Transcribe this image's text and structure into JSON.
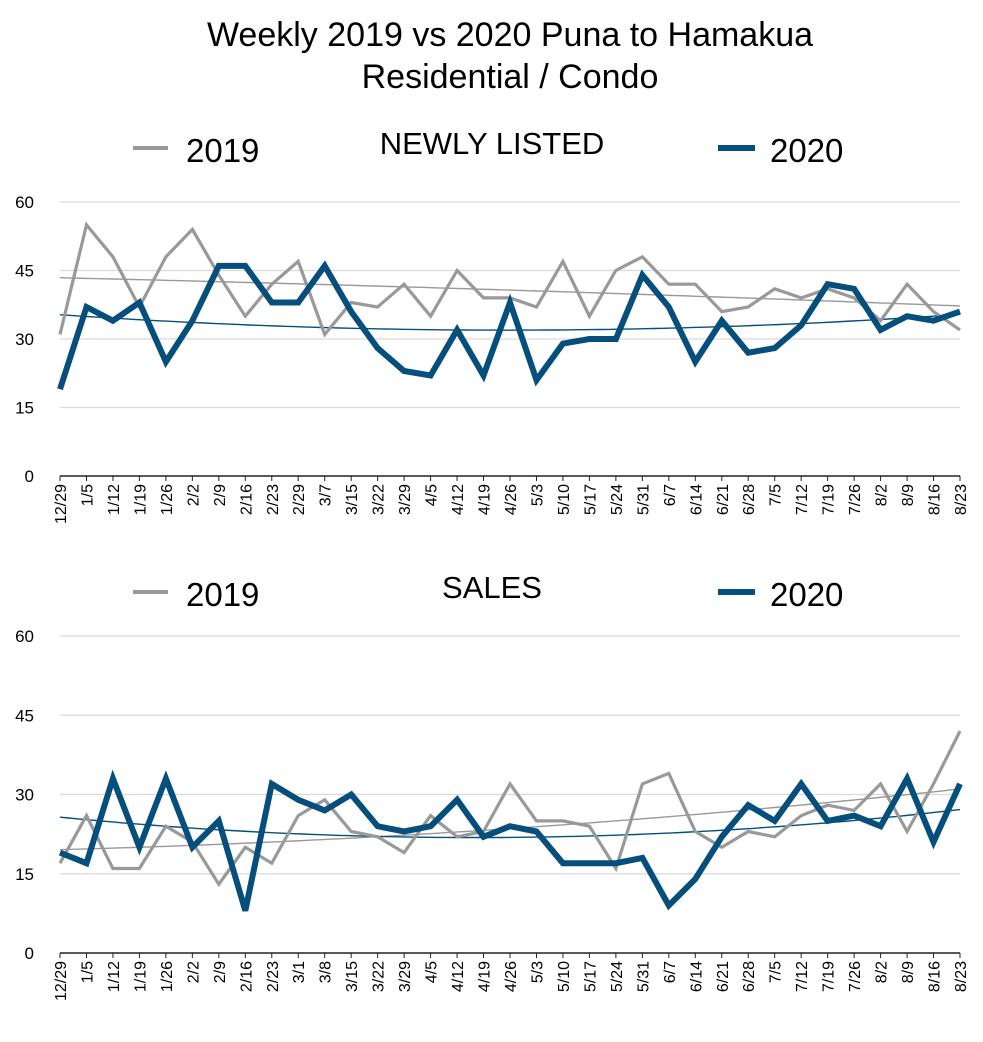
{
  "title_line1": "Weekly 2019 vs 2020 Puna to Hamakua",
  "title_line2": "Residential / Condo",
  "colors": {
    "series_2019": "#999999",
    "series_2020": "#064F7D",
    "grid": "#d9d9d9",
    "axis": "#222222"
  },
  "chart_data": [
    {
      "type": "line",
      "title": "NEWLY LISTED",
      "categories": [
        "12/29",
        "1/5",
        "1/12",
        "1/19",
        "1/26",
        "2/2",
        "2/9",
        "2/16",
        "2/23",
        "2/29",
        "3/7",
        "3/15",
        "3/22",
        "3/29",
        "4/5",
        "4/12",
        "4/19",
        "4/26",
        "5/3",
        "5/10",
        "5/17",
        "5/24",
        "5/31",
        "6/7",
        "6/14",
        "6/21",
        "6/28",
        "7/5",
        "7/12",
        "7/19",
        "7/26",
        "8/2",
        "8/9",
        "8/16",
        "8/23"
      ],
      "yticks": [
        0,
        15,
        30,
        45,
        60
      ],
      "ylim": [
        0,
        60
      ],
      "grid": true,
      "legend": "top",
      "series": [
        {
          "name": "2019",
          "values": [
            31,
            55,
            48,
            37,
            48,
            54,
            44,
            35,
            42,
            47,
            31,
            38,
            37,
            42,
            35,
            45,
            39,
            39,
            37,
            47,
            35,
            45,
            48,
            42,
            42,
            36,
            37,
            41,
            39,
            41,
            39,
            34,
            42,
            36,
            32
          ],
          "trendline": true
        },
        {
          "name": "2020",
          "values": [
            19,
            37,
            34,
            38,
            25,
            34,
            46,
            46,
            38,
            38,
            46,
            36,
            28,
            23,
            22,
            32,
            22,
            38,
            21,
            29,
            30,
            30,
            44,
            37,
            25,
            34,
            27,
            28,
            33,
            42,
            41,
            32,
            35,
            34,
            36
          ],
          "trendline": true
        }
      ]
    },
    {
      "type": "line",
      "title": "SALES",
      "categories": [
        "12/29",
        "1/5",
        "1/12",
        "1/19",
        "1/26",
        "2/2",
        "2/9",
        "2/16",
        "2/23",
        "3/1",
        "3/8",
        "3/15",
        "3/22",
        "3/29",
        "4/5",
        "4/12",
        "4/19",
        "4/26",
        "5/3",
        "5/10",
        "5/17",
        "5/24",
        "5/31",
        "6/7",
        "6/14",
        "6/21",
        "6/28",
        "7/5",
        "7/12",
        "7/19",
        "7/26",
        "8/2",
        "8/9",
        "8/16",
        "8/23"
      ],
      "yticks": [
        0,
        15,
        30,
        45,
        60
      ],
      "ylim": [
        0,
        60
      ],
      "grid": true,
      "legend": "top",
      "series": [
        {
          "name": "2019",
          "values": [
            17,
            26,
            16,
            16,
            24,
            21,
            13,
            20,
            17,
            26,
            29,
            23,
            22,
            19,
            26,
            22,
            23,
            32,
            25,
            25,
            24,
            16,
            32,
            34,
            23,
            20,
            23,
            22,
            26,
            28,
            27,
            32,
            23,
            32,
            42
          ],
          "trendline": true
        },
        {
          "name": "2020",
          "values": [
            19,
            17,
            33,
            20,
            33,
            20,
            25,
            8,
            32,
            29,
            27,
            30,
            24,
            23,
            24,
            29,
            22,
            24,
            23,
            17,
            17,
            17,
            18,
            9,
            14,
            22,
            28,
            25,
            32,
            25,
            26,
            24,
            33,
            21,
            32
          ],
          "trendline": true
        }
      ]
    }
  ]
}
